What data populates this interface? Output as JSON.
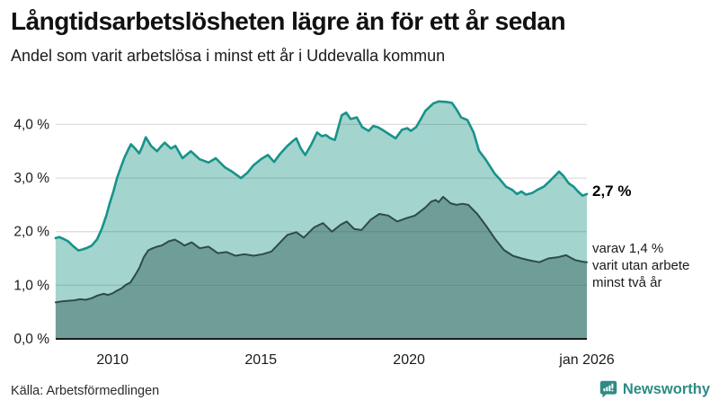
{
  "header": {
    "title": "Långtidsarbetslösheten lägre än för ett år sedan",
    "subtitle": "Andel som varit arbetslösa i minst ett år i Uddevalla kommun"
  },
  "chart_data": {
    "type": "area",
    "title": "Långtidsarbetslösheten lägre än för ett år sedan",
    "subtitle": "Andel som varit arbetslösa i minst ett år i Uddevalla kommun",
    "grid": true,
    "legend_position": "none",
    "x_axis": {
      "range": [
        2008.083,
        2026.0
      ],
      "ticks": [
        {
          "label": "2010",
          "year": 2010
        },
        {
          "label": "2015",
          "year": 2015
        },
        {
          "label": "2020",
          "year": 2020
        },
        {
          "label": "jan 2026",
          "year": 2026.0
        }
      ]
    },
    "y_axis": {
      "range": [
        0,
        4.56
      ],
      "unit": "%",
      "gridlines": [
        1,
        2,
        3,
        4
      ],
      "ticks": [
        {
          "label": "0,0 %",
          "value": 0
        },
        {
          "label": "1,0 %",
          "value": 1
        },
        {
          "label": "2,0 %",
          "value": 2
        },
        {
          "label": "3,0 %",
          "value": 3
        },
        {
          "label": "4,0 %",
          "value": 4
        }
      ]
    },
    "series": [
      {
        "name": "Arbetslösa minst ett år",
        "line_color": "#17938a",
        "fill_color": "#a4d4ce",
        "line_width": 2.6,
        "points": [
          [
            2008.08,
            1.88
          ],
          [
            2008.2,
            1.9
          ],
          [
            2008.33,
            1.87
          ],
          [
            2008.5,
            1.82
          ],
          [
            2008.65,
            1.74
          ],
          [
            2008.85,
            1.65
          ],
          [
            2009.0,
            1.67
          ],
          [
            2009.15,
            1.7
          ],
          [
            2009.3,
            1.74
          ],
          [
            2009.48,
            1.86
          ],
          [
            2009.64,
            2.06
          ],
          [
            2009.79,
            2.3
          ],
          [
            2009.9,
            2.52
          ],
          [
            2010.03,
            2.75
          ],
          [
            2010.15,
            3.0
          ],
          [
            2010.28,
            3.2
          ],
          [
            2010.4,
            3.38
          ],
          [
            2010.52,
            3.52
          ],
          [
            2010.62,
            3.63
          ],
          [
            2010.76,
            3.55
          ],
          [
            2010.9,
            3.46
          ],
          [
            2011.0,
            3.58
          ],
          [
            2011.12,
            3.76
          ],
          [
            2011.3,
            3.6
          ],
          [
            2011.5,
            3.5
          ],
          [
            2011.65,
            3.6
          ],
          [
            2011.76,
            3.66
          ],
          [
            2011.97,
            3.55
          ],
          [
            2012.12,
            3.6
          ],
          [
            2012.36,
            3.37
          ],
          [
            2012.64,
            3.5
          ],
          [
            2012.8,
            3.42
          ],
          [
            2012.94,
            3.35
          ],
          [
            2013.24,
            3.29
          ],
          [
            2013.48,
            3.37
          ],
          [
            2013.79,
            3.2
          ],
          [
            2014.03,
            3.12
          ],
          [
            2014.33,
            3.0
          ],
          [
            2014.55,
            3.1
          ],
          [
            2014.76,
            3.24
          ],
          [
            2015.0,
            3.35
          ],
          [
            2015.24,
            3.43
          ],
          [
            2015.45,
            3.3
          ],
          [
            2015.65,
            3.45
          ],
          [
            2015.9,
            3.6
          ],
          [
            2016.06,
            3.68
          ],
          [
            2016.2,
            3.74
          ],
          [
            2016.35,
            3.55
          ],
          [
            2016.5,
            3.43
          ],
          [
            2016.7,
            3.62
          ],
          [
            2016.9,
            3.85
          ],
          [
            2017.06,
            3.78
          ],
          [
            2017.2,
            3.8
          ],
          [
            2017.35,
            3.74
          ],
          [
            2017.5,
            3.71
          ],
          [
            2017.73,
            4.17
          ],
          [
            2017.88,
            4.22
          ],
          [
            2018.03,
            4.1
          ],
          [
            2018.24,
            4.13
          ],
          [
            2018.42,
            3.95
          ],
          [
            2018.64,
            3.88
          ],
          [
            2018.79,
            3.97
          ],
          [
            2018.94,
            3.95
          ],
          [
            2019.1,
            3.9
          ],
          [
            2019.24,
            3.85
          ],
          [
            2019.55,
            3.74
          ],
          [
            2019.76,
            3.9
          ],
          [
            2019.94,
            3.93
          ],
          [
            2020.06,
            3.88
          ],
          [
            2020.24,
            3.95
          ],
          [
            2020.4,
            4.1
          ],
          [
            2020.55,
            4.25
          ],
          [
            2020.82,
            4.39
          ],
          [
            2021.0,
            4.43
          ],
          [
            2021.27,
            4.42
          ],
          [
            2021.45,
            4.4
          ],
          [
            2021.6,
            4.28
          ],
          [
            2021.76,
            4.13
          ],
          [
            2021.97,
            4.08
          ],
          [
            2022.18,
            3.85
          ],
          [
            2022.36,
            3.51
          ],
          [
            2022.58,
            3.35
          ],
          [
            2022.88,
            3.09
          ],
          [
            2023.03,
            3.0
          ],
          [
            2023.27,
            2.84
          ],
          [
            2023.48,
            2.78
          ],
          [
            2023.64,
            2.7
          ],
          [
            2023.79,
            2.75
          ],
          [
            2023.94,
            2.69
          ],
          [
            2024.15,
            2.72
          ],
          [
            2024.33,
            2.78
          ],
          [
            2024.55,
            2.84
          ],
          [
            2024.76,
            2.95
          ],
          [
            2024.94,
            3.05
          ],
          [
            2025.06,
            3.12
          ],
          [
            2025.21,
            3.04
          ],
          [
            2025.39,
            2.9
          ],
          [
            2025.55,
            2.84
          ],
          [
            2025.7,
            2.75
          ],
          [
            2025.85,
            2.67
          ],
          [
            2026.0,
            2.7
          ]
        ]
      },
      {
        "name": "Arbetslösa minst två år",
        "line_color": "#2f4b47",
        "fill_color": "#6f9e98",
        "line_width": 2,
        "points": [
          [
            2008.08,
            0.68
          ],
          [
            2008.3,
            0.7
          ],
          [
            2008.5,
            0.71
          ],
          [
            2008.7,
            0.72
          ],
          [
            2008.9,
            0.74
          ],
          [
            2009.1,
            0.73
          ],
          [
            2009.3,
            0.76
          ],
          [
            2009.5,
            0.81
          ],
          [
            2009.7,
            0.84
          ],
          [
            2009.85,
            0.82
          ],
          [
            2010.0,
            0.85
          ],
          [
            2010.15,
            0.9
          ],
          [
            2010.3,
            0.94
          ],
          [
            2010.45,
            1.01
          ],
          [
            2010.6,
            1.05
          ],
          [
            2010.75,
            1.18
          ],
          [
            2010.9,
            1.32
          ],
          [
            2011.05,
            1.52
          ],
          [
            2011.2,
            1.65
          ],
          [
            2011.35,
            1.69
          ],
          [
            2011.5,
            1.72
          ],
          [
            2011.65,
            1.74
          ],
          [
            2011.9,
            1.82
          ],
          [
            2012.1,
            1.85
          ],
          [
            2012.27,
            1.8
          ],
          [
            2012.42,
            1.74
          ],
          [
            2012.67,
            1.8
          ],
          [
            2012.94,
            1.69
          ],
          [
            2013.24,
            1.72
          ],
          [
            2013.55,
            1.6
          ],
          [
            2013.85,
            1.62
          ],
          [
            2014.15,
            1.55
          ],
          [
            2014.45,
            1.58
          ],
          [
            2014.76,
            1.55
          ],
          [
            2015.06,
            1.58
          ],
          [
            2015.36,
            1.63
          ],
          [
            2015.6,
            1.77
          ],
          [
            2015.9,
            1.94
          ],
          [
            2016.2,
            1.99
          ],
          [
            2016.45,
            1.89
          ],
          [
            2016.8,
            2.08
          ],
          [
            2017.1,
            2.16
          ],
          [
            2017.4,
            2.0
          ],
          [
            2017.7,
            2.13
          ],
          [
            2017.9,
            2.19
          ],
          [
            2018.15,
            2.05
          ],
          [
            2018.4,
            2.03
          ],
          [
            2018.7,
            2.22
          ],
          [
            2019.0,
            2.33
          ],
          [
            2019.3,
            2.3
          ],
          [
            2019.6,
            2.19
          ],
          [
            2019.9,
            2.25
          ],
          [
            2020.2,
            2.3
          ],
          [
            2020.55,
            2.45
          ],
          [
            2020.75,
            2.56
          ],
          [
            2020.9,
            2.59
          ],
          [
            2021.0,
            2.55
          ],
          [
            2021.15,
            2.65
          ],
          [
            2021.4,
            2.53
          ],
          [
            2021.6,
            2.5
          ],
          [
            2021.8,
            2.52
          ],
          [
            2022.0,
            2.5
          ],
          [
            2022.3,
            2.33
          ],
          [
            2022.6,
            2.11
          ],
          [
            2022.9,
            1.87
          ],
          [
            2023.2,
            1.66
          ],
          [
            2023.5,
            1.55
          ],
          [
            2023.8,
            1.5
          ],
          [
            2024.1,
            1.46
          ],
          [
            2024.4,
            1.43
          ],
          [
            2024.7,
            1.5
          ],
          [
            2025.0,
            1.52
          ],
          [
            2025.3,
            1.56
          ],
          [
            2025.6,
            1.47
          ],
          [
            2025.85,
            1.44
          ],
          [
            2026.0,
            1.43
          ]
        ]
      }
    ],
    "annotations": {
      "value_label": "2,7 %",
      "note_lines": [
        "varav 1,4 %",
        "varit utan arbete",
        "minst två år"
      ]
    },
    "colors": {
      "gridline": "#4a4a4a",
      "axis_line": "#1a1a1a",
      "tick_text": "#1a1a1a"
    }
  },
  "footer": {
    "source_label": "Källa: Arbetsförmedlingen",
    "brand_name": "Newsworthy",
    "brand_color": "#2e8b84"
  }
}
